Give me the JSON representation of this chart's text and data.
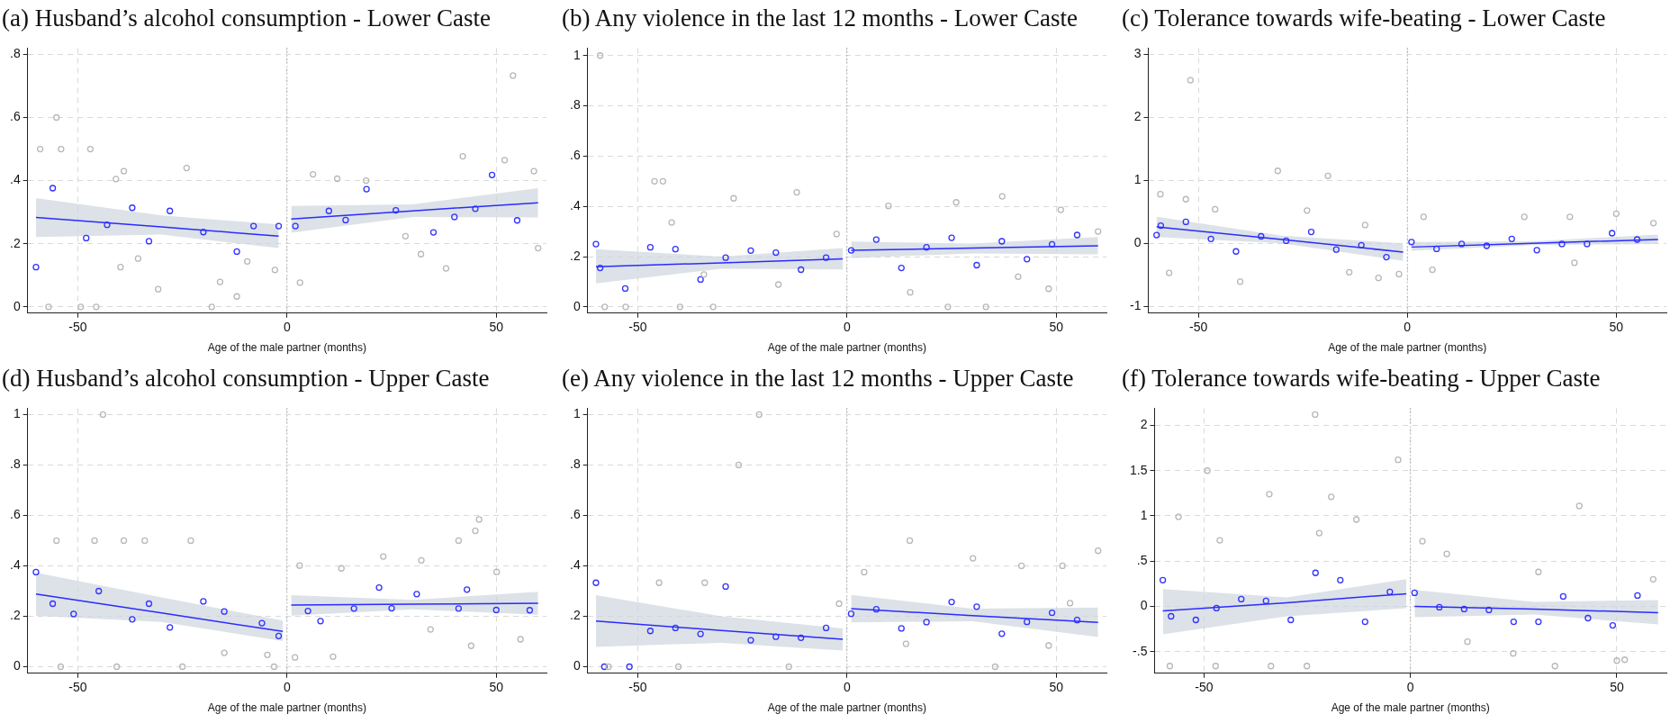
{
  "chart_data": [
    {
      "type": "scatter",
      "title": "(a) Husband’s alcohol consumption - Lower Caste",
      "xlabel": "Age of the male partner (months)",
      "xlim": [
        -62,
        62
      ],
      "xticks": [
        -50,
        0,
        50
      ],
      "ylim": [
        -0.02,
        0.82
      ],
      "yticks": [
        0,
        {
          "value": 0.2,
          "label": ".2"
        },
        {
          "value": 0.4,
          "label": ".4"
        },
        {
          "value": 0.6,
          "label": ".6"
        },
        {
          "value": 0.8,
          "label": ".8"
        }
      ],
      "grid": true,
      "legend": false,
      "ref_lines": [
        {
          "axis": "x",
          "value": 0,
          "color": "#888888",
          "line_style": "dotted"
        }
      ],
      "series": [
        {
          "type": "scatter",
          "color": "#b8b8b8",
          "marker": "circle",
          "x": [
            -59,
            -55.1,
            -54,
            -47,
            -57,
            -49.3,
            -45.6,
            -39,
            -40.9,
            -24,
            -35.6,
            -30.8,
            -16,
            -12,
            -18,
            -2.9,
            54,
            42,
            52,
            59,
            6.2,
            18.9,
            38,
            3.1,
            28.3,
            60,
            12,
            32,
            -9.5,
            -39.8
          ],
          "values": [
            0.5,
            0.6,
            0.5,
            0.5,
            0,
            0,
            0,
            0.43,
            0.405,
            0.44,
            0.153,
            0.056,
            0.079,
            0.033,
            0,
            0.117,
            0.733,
            0.477,
            0.465,
            0.43,
            0.42,
            0.4,
            0.122,
            0.077,
            0.224,
            0.186,
            0.406,
            0.167,
            0.144,
            0.126
          ]
        },
        {
          "type": "scatter",
          "color": "#3333ff",
          "marker": "circle",
          "x": [
            -60,
            -56,
            -48,
            -43,
            -37,
            -33,
            -28,
            -20,
            -12,
            -8,
            -2,
            2,
            10,
            14,
            19,
            26,
            35,
            40,
            45,
            49,
            55
          ],
          "values": [
            0.126,
            0.376,
            0.218,
            0.26,
            0.314,
            0.208,
            0.304,
            0.237,
            0.175,
            0.256,
            0.256,
            0.256,
            0.304,
            0.275,
            0.373,
            0.306,
            0.236,
            0.285,
            0.311,
            0.418,
            0.274
          ]
        },
        {
          "type": "line",
          "color": "#2b2bff",
          "marker": "none",
          "x": [
            -60,
            -30,
            -2
          ],
          "values": [
            0.283,
            0.253,
            0.224
          ],
          "lower": [
            0.221,
            0.229,
            0.186
          ],
          "upper": [
            0.345,
            0.29,
            0.261
          ]
        },
        {
          "type": "line",
          "color": "#2b2bff",
          "marker": "none",
          "x": [
            1,
            30,
            60
          ],
          "values": [
            0.278,
            0.304,
            0.33
          ],
          "lower": [
            0.235,
            0.285,
            0.283
          ],
          "upper": [
            0.32,
            0.325,
            0.376
          ]
        }
      ]
    },
    {
      "type": "scatter",
      "title": "(b) Any violence in the last 12 months - Lower Caste",
      "xlabel": "Age of the male partner (months)",
      "xlim": [
        -62,
        62
      ],
      "xticks": [
        -50,
        0,
        50
      ],
      "ylim": [
        -0.025,
        1.03
      ],
      "yticks": [
        0,
        {
          "value": 0.2,
          "label": ".2"
        },
        {
          "value": 0.4,
          "label": ".4"
        },
        {
          "value": 0.6,
          "label": ".6"
        },
        {
          "value": 0.8,
          "label": ".8"
        },
        1
      ],
      "grid": true,
      "legend": false,
      "ref_lines": [
        {
          "axis": "x",
          "value": 0,
          "color": "#888888",
          "line_style": "dotted"
        }
      ],
      "series": [
        {
          "type": "scatter",
          "color": "#b8b8b8",
          "marker": "circle",
          "x": [
            -59,
            -46,
            -44,
            -41.9,
            -27.1,
            -12,
            -57.9,
            -52.9,
            -39.9,
            -32,
            9.9,
            26.1,
            37.1,
            51.1,
            15.1,
            48.2,
            33.2,
            24.1,
            60,
            -2.5,
            -16.4,
            -34.2,
            40.9
          ],
          "values": [
            1,
            0.5,
            0.5,
            0.336,
            0.432,
            0.456,
            0,
            0,
            0,
            0,
            0.402,
            0.416,
            0.44,
            0.386,
            0.058,
            0.072,
            0,
            0,
            0.3,
            0.29,
            0.089,
            0.129,
            0.12
          ]
        },
        {
          "type": "scatter",
          "color": "#3333ff",
          "marker": "circle",
          "x": [
            -60,
            -59,
            -53,
            -47,
            -41,
            -35,
            -29,
            -23,
            -17,
            -11,
            -5,
            1,
            7,
            13,
            19,
            25,
            31,
            37,
            43,
            49,
            55
          ],
          "values": [
            0.25,
            0.155,
            0.073,
            0.237,
            0.23,
            0.109,
            0.196,
            0.224,
            0.216,
            0.148,
            0.196,
            0.225,
            0.268,
            0.155,
            0.237,
            0.275,
            0.166,
            0.261,
            0.19,
            0.249,
            0.286
          ]
        },
        {
          "type": "line",
          "color": "#2b2bff",
          "marker": "none",
          "x": [
            -60,
            -30,
            -1
          ],
          "values": [
            0.16,
            0.175,
            0.191
          ],
          "lower": [
            0.093,
            0.152,
            0.149
          ],
          "upper": [
            0.23,
            0.2,
            0.234
          ]
        },
        {
          "type": "line",
          "color": "#2b2bff",
          "marker": "none",
          "x": [
            1,
            30,
            60
          ],
          "values": [
            0.225,
            0.234,
            0.243
          ],
          "lower": [
            0.194,
            0.213,
            0.209
          ],
          "upper": [
            0.26,
            0.252,
            0.278
          ]
        }
      ]
    },
    {
      "type": "scatter",
      "title": "(c) Tolerance towards wife-beating - Lower Caste",
      "xlabel": "Age of the male partner (months)",
      "xlim": [
        -62,
        62
      ],
      "xticks": [
        -50,
        0,
        50
      ],
      "ylim": [
        -1.11,
        3.1
      ],
      "yticks": [
        -1,
        0,
        1,
        2,
        3
      ],
      "grid": true,
      "legend": false,
      "ref_lines": [
        {
          "axis": "x",
          "value": 0,
          "color": "#888888",
          "line_style": "dotted"
        }
      ],
      "series": [
        {
          "type": "scatter",
          "color": "#b8b8b8",
          "marker": "circle",
          "x": [
            -51.9,
            -31,
            -19,
            -59.1,
            -57,
            -40,
            -53,
            -46,
            -24,
            -13.9,
            -6.9,
            -2,
            3.9,
            6,
            28,
            38.9,
            50,
            58.9,
            40,
            -10.1
          ],
          "values": [
            2.59,
            1.15,
            1.07,
            0.78,
            -0.47,
            -0.61,
            0.7,
            0.54,
            0.52,
            -0.46,
            -0.55,
            -0.49,
            0.42,
            -0.42,
            0.42,
            0.42,
            0.47,
            0.32,
            -0.31,
            0.29
          ]
        },
        {
          "type": "scatter",
          "color": "#3333ff",
          "marker": "circle",
          "x": [
            -60,
            -59,
            -53,
            -47,
            -41,
            -35,
            -29,
            -23,
            -17,
            -11,
            -5,
            1,
            7,
            13,
            19,
            25,
            31,
            37,
            43,
            49,
            55
          ],
          "values": [
            0.13,
            0.28,
            0.34,
            0.07,
            -0.13,
            0.11,
            0.04,
            0.18,
            -0.1,
            -0.03,
            -0.22,
            0.02,
            -0.09,
            -0.01,
            -0.04,
            0.07,
            -0.11,
            -0.01,
            -0.01,
            0.16,
            0.06
          ]
        },
        {
          "type": "line",
          "color": "#2b2bff",
          "marker": "none",
          "x": [
            -60,
            -30,
            -1
          ],
          "values": [
            0.26,
            0.06,
            -0.14
          ],
          "lower": [
            0.1,
            0,
            -0.28
          ],
          "upper": [
            0.42,
            0.12,
            0
          ]
        },
        {
          "type": "line",
          "color": "#2b2bff",
          "marker": "none",
          "x": [
            1,
            30,
            60
          ],
          "values": [
            -0.06,
            0,
            0.06
          ],
          "lower": [
            -0.12,
            -0.03,
            -0.01
          ],
          "upper": [
            0.02,
            0.03,
            0.14
          ]
        }
      ]
    },
    {
      "type": "scatter",
      "title": "(d) Husband’s alcohol consumption - Upper Caste",
      "xlabel": "Age of the male partner (months)",
      "xlim": [
        -62,
        62
      ],
      "xticks": [
        -50,
        0,
        50
      ],
      "ylim": [
        -0.026,
        1.025
      ],
      "yticks": [
        0,
        {
          "value": 0.2,
          "label": ".2"
        },
        {
          "value": 0.4,
          "label": ".4"
        },
        {
          "value": 0.6,
          "label": ".6"
        },
        {
          "value": 0.8,
          "label": ".8"
        },
        1
      ],
      "grid": true,
      "legend": false,
      "ref_lines": [
        {
          "axis": "x",
          "value": 0,
          "color": "#888888",
          "line_style": "dotted"
        }
      ],
      "series": [
        {
          "type": "scatter",
          "color": "#b8b8b8",
          "marker": "circle",
          "x": [
            -44,
            -55.1,
            -46,
            -39,
            -34,
            -23,
            45.9,
            45,
            41,
            23,
            3,
            13,
            -54.1,
            -40.7,
            -25,
            -3.1,
            1.9,
            11,
            44,
            55.8,
            32.1,
            50.1,
            34.3,
            -4.7,
            -15
          ],
          "values": [
            1,
            0.5,
            0.5,
            0.5,
            0.5,
            0.5,
            0.584,
            0.539,
            0.5,
            0.437,
            0.401,
            0.39,
            0,
            0,
            0,
            0,
            0.037,
            0.04,
            0.083,
            0.109,
            0.422,
            0.376,
            0.148,
            0.047,
            0.055
          ]
        },
        {
          "type": "scatter",
          "color": "#3333ff",
          "marker": "circle",
          "x": [
            -60,
            -56,
            -51,
            -45,
            -37,
            -33,
            -28,
            -20,
            -15,
            -6,
            -2,
            5,
            8,
            16,
            22,
            25,
            31,
            41,
            43,
            50,
            58
          ],
          "values": [
            0.375,
            0.25,
            0.209,
            0.3,
            0.188,
            0.25,
            0.156,
            0.259,
            0.219,
            0.173,
            0.122,
            0.221,
            0.181,
            0.231,
            0.314,
            0.232,
            0.288,
            0.231,
            0.306,
            0.225,
            0.224
          ]
        },
        {
          "type": "line",
          "color": "#2b2bff",
          "marker": "none",
          "x": [
            -60,
            -30,
            -1
          ],
          "values": [
            0.288,
            0.213,
            0.14
          ],
          "lower": [
            0.202,
            0.178,
            0.102
          ],
          "upper": [
            0.373,
            0.275,
            0.183
          ]
        },
        {
          "type": "line",
          "color": "#2b2bff",
          "marker": "none",
          "x": [
            1,
            30,
            60
          ],
          "values": [
            0.245,
            0.248,
            0.252
          ],
          "lower": [
            0.203,
            0.228,
            0.206
          ],
          "upper": [
            0.284,
            0.265,
            0.297
          ]
        }
      ]
    },
    {
      "type": "scatter",
      "title": "(e) Any violence in the last 12 months - Upper Caste",
      "xlabel": "Age of the male partner (months)",
      "xlim": [
        -62,
        62
      ],
      "xticks": [
        -50,
        0,
        50
      ],
      "ylim": [
        -0.026,
        1.025
      ],
      "yticks": [
        0,
        {
          "value": 0.2,
          "label": ".2"
        },
        {
          "value": 0.4,
          "label": ".4"
        },
        {
          "value": 0.6,
          "label": ".6"
        },
        {
          "value": 0.8,
          "label": ".8"
        },
        1
      ],
      "grid": true,
      "legend": false,
      "ref_lines": [
        {
          "axis": "x",
          "value": 0,
          "color": "#888888",
          "line_style": "dotted"
        }
      ],
      "series": [
        {
          "type": "scatter",
          "color": "#b8b8b8",
          "marker": "circle",
          "x": [
            -21,
            -25.9,
            15,
            4.1,
            30.1,
            -44.9,
            -34,
            60,
            51.5,
            41.7,
            14.1,
            48.2,
            -57,
            -40.3,
            -13.9,
            35.4,
            -1.9,
            53.3
          ],
          "values": [
            1,
            0.8,
            0.5,
            0.375,
            0.43,
            0.333,
            0.333,
            0.46,
            0.4,
            0.4,
            0.091,
            0.084,
            0,
            0,
            0,
            0,
            0.25,
            0.252
          ]
        },
        {
          "type": "scatter",
          "color": "#3333ff",
          "marker": "circle",
          "x": [
            -60,
            -58,
            -52,
            -47,
            -41,
            -35,
            -29,
            -23,
            -17,
            -11,
            -5,
            1,
            7,
            13,
            19,
            25,
            31,
            37,
            43,
            49,
            55
          ],
          "values": [
            0.333,
            0,
            0,
            0.142,
            0.154,
            0.13,
            0.318,
            0.105,
            0.119,
            0.115,
            0.154,
            0.21,
            0.228,
            0.152,
            0.177,
            0.257,
            0.238,
            0.131,
            0.178,
            0.214,
            0.185
          ]
        },
        {
          "type": "line",
          "color": "#2b2bff",
          "marker": "none",
          "x": [
            -60,
            -30,
            -1
          ],
          "values": [
            0.181,
            0.144,
            0.109
          ],
          "lower": [
            0.079,
            0.095,
            0.064
          ],
          "upper": [
            0.284,
            0.2,
            0.152
          ]
        },
        {
          "type": "line",
          "color": "#2b2bff",
          "marker": "none",
          "x": [
            1,
            30,
            60
          ],
          "values": [
            0.23,
            0.203,
            0.176
          ],
          "lower": [
            0.176,
            0.18,
            0.118
          ],
          "upper": [
            0.285,
            0.23,
            0.235
          ]
        }
      ]
    },
    {
      "type": "scatter",
      "title": "(f) Tolerance towards wife-beating - Upper Caste",
      "xlabel": "Age of the male partner (months)",
      "xlim": [
        -62,
        62
      ],
      "xticks": [
        -50,
        0,
        50
      ],
      "ylim": [
        -0.74,
        2.19
      ],
      "yticks": [
        {
          "value": -0.5,
          "label": "-.5"
        },
        0,
        {
          "value": 0.5,
          "label": ".5"
        },
        1,
        1.5,
        2
      ],
      "grid": true,
      "legend": false,
      "ref_lines": [
        {
          "axis": "x",
          "value": 0,
          "color": "#888888",
          "line_style": "dotted"
        }
      ],
      "series": [
        {
          "type": "scatter",
          "color": "#b8b8b8",
          "marker": "circle",
          "x": [
            -23.1,
            -3,
            -49.2,
            -19.2,
            -34.2,
            40.9,
            -56.2,
            -13.1,
            -22.1,
            2.9,
            -46.2,
            8.8,
            -58.3,
            -47.2,
            -33.8,
            -25.1,
            35,
            50,
            51.9,
            13.8,
            24.9,
            58.8,
            31
          ],
          "values": [
            2.12,
            1.62,
            1.5,
            1.21,
            1.24,
            1.11,
            0.99,
            0.96,
            0.81,
            0.72,
            0.73,
            0.58,
            -0.66,
            -0.66,
            -0.66,
            -0.66,
            -0.66,
            -0.6,
            -0.59,
            -0.39,
            -0.52,
            0.3,
            0.38
          ]
        },
        {
          "type": "scatter",
          "color": "#3333ff",
          "marker": "circle",
          "x": [
            -60,
            -58,
            -52,
            -47,
            -41,
            -35,
            -29,
            -23,
            -17,
            -11,
            -5,
            1,
            7,
            13,
            19,
            25,
            31,
            37,
            43,
            49,
            55
          ],
          "values": [
            0.29,
            -0.11,
            -0.15,
            -0.02,
            0.08,
            0.06,
            -0.15,
            0.37,
            0.29,
            -0.17,
            0.16,
            0.15,
            -0.01,
            -0.03,
            -0.04,
            -0.17,
            -0.17,
            0.11,
            -0.13,
            -0.21,
            0.12
          ]
        },
        {
          "type": "line",
          "color": "#2b2bff",
          "marker": "none",
          "x": [
            -60,
            -30,
            -1
          ],
          "values": [
            -0.05,
            0.04,
            0.14
          ],
          "lower": [
            -0.31,
            -0.11,
            -0.02
          ],
          "upper": [
            0.19,
            0.1,
            0.3
          ]
        },
        {
          "type": "line",
          "color": "#2b2bff",
          "marker": "none",
          "x": [
            1,
            30,
            60
          ],
          "values": [
            0,
            -0.03,
            -0.07
          ],
          "lower": [
            -0.12,
            -0.09,
            -0.2
          ],
          "upper": [
            0.18,
            0.05,
            0.07
          ]
        }
      ]
    }
  ]
}
